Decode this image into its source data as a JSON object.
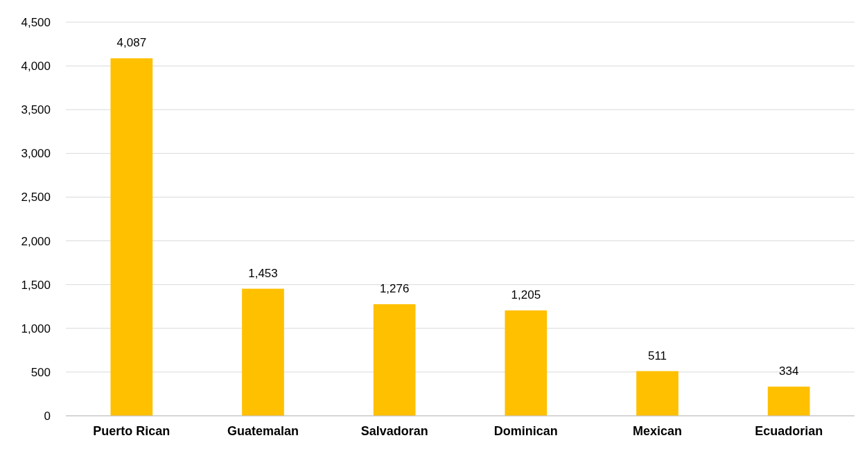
{
  "chart_data": {
    "type": "bar",
    "categories": [
      "Puerto Rican",
      "Guatemalan",
      "Salvadoran",
      "Dominican",
      "Mexican",
      "Ecuadorian"
    ],
    "values": [
      4087,
      1453,
      1276,
      1205,
      511,
      334
    ],
    "color": "#ffc000",
    "ylim": [
      0,
      4500
    ],
    "yticks": [
      {
        "value": 0,
        "label": "0"
      },
      {
        "value": 500,
        "label": "500"
      },
      {
        "value": 1000,
        "label": "1,000"
      },
      {
        "value": 1500,
        "label": "1,500"
      },
      {
        "value": 2000,
        "label": "2,000"
      },
      {
        "value": 2500,
        "label": "2,500"
      },
      {
        "value": 3000,
        "label": "3,000"
      },
      {
        "value": 3500,
        "label": "3,500"
      },
      {
        "value": 4000,
        "label": "4,000"
      },
      {
        "value": 4500,
        "label": "4,500"
      }
    ],
    "grid": "y",
    "value_labels": [
      "4,087",
      "1,453",
      "1,276",
      "1,205",
      "511",
      "334"
    ]
  }
}
